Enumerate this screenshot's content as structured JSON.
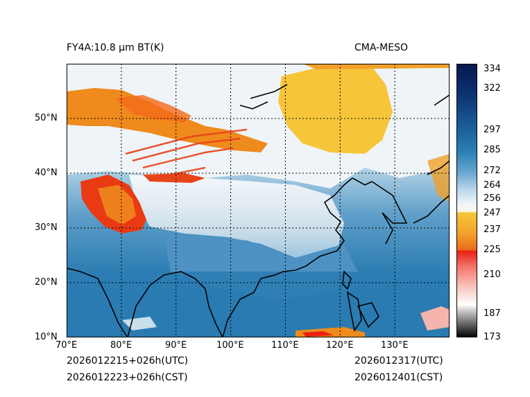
{
  "header": {
    "left_title": "FY4A:10.8 µm BT(K)",
    "right_title": "CMA-MESO"
  },
  "footer": {
    "init_utc": "2026012215+026h(UTC)",
    "init_cst": "2026012223+026h(CST)",
    "valid_utc": "2026012317(UTC)",
    "valid_cst": "2026012401(CST)"
  },
  "map": {
    "lon_ticks": [
      "70°E",
      "80°E",
      "90°E",
      "100°E",
      "110°E",
      "120°E",
      "130°E"
    ],
    "lat_ticks": [
      "10°N",
      "20°N",
      "30°N",
      "40°N",
      "50°N"
    ],
    "extent": {
      "lon_min": 70,
      "lon_max": 140,
      "lat_min": 10,
      "lat_max": 60
    }
  },
  "colorbar": {
    "labels": [
      "334",
      "322",
      "297",
      "285",
      "272",
      "264",
      "256",
      "247",
      "237",
      "225",
      "210",
      "187",
      "173"
    ],
    "range": [
      173,
      337
    ],
    "colors": {
      "warm_max": "#08184f",
      "dark_blue": "#0d3f7a",
      "mid_blue": "#2a7fb5",
      "light_blue": "#9cc8e2",
      "pale": "#eaf2f7",
      "yellow": "#f7c53a",
      "orange": "#ef8a1c",
      "red": "#e82010",
      "pink": "#f6b8b0",
      "grey": "#9a9a9a",
      "black": "#000000"
    }
  }
}
